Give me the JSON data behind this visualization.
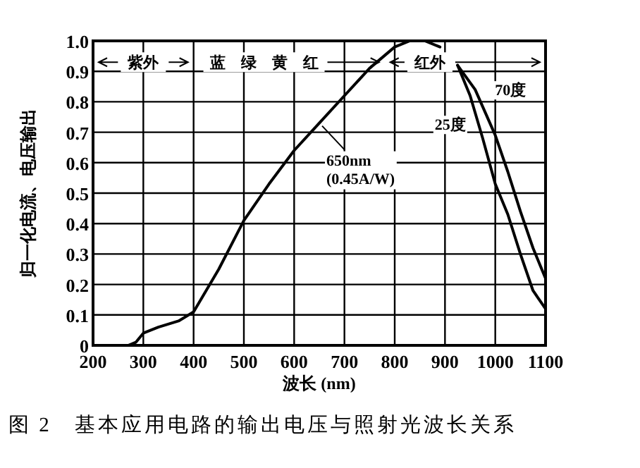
{
  "chart_data": {
    "type": "line",
    "title": "图 2　基本应用电路的输出电压与照射光波长关系",
    "xlabel": "波长 (nm)",
    "ylabel": "归一化电流、电压输出",
    "xlim": [
      200,
      1100
    ],
    "ylim": [
      0,
      1
    ],
    "xticks": [
      200,
      300,
      400,
      500,
      600,
      700,
      800,
      900,
      1000,
      1100
    ],
    "yticks": [
      {
        "value": 0,
        "label": "0"
      },
      0.1,
      0.2,
      0.3,
      0.4,
      0.5,
      0.6,
      0.7,
      0.8,
      0.9,
      {
        "value": 1,
        "label": "1.0"
      }
    ],
    "grid": true,
    "series": [
      {
        "color": "#000000",
        "x": [
          200,
          270,
          285,
          300,
          330,
          370,
          400,
          450,
          500,
          550,
          600,
          650,
          700,
          750,
          800,
          830,
          860,
          890
        ],
        "values": [
          0,
          0,
          0.01,
          0.04,
          0.06,
          0.08,
          0.11,
          0.25,
          0.41,
          0.53,
          0.64,
          0.73,
          0.82,
          0.91,
          0.98,
          1.0,
          1.0,
          0.98
        ]
      },
      {
        "name": "70度",
        "color": "#000000",
        "x": [
          925,
          960,
          1000,
          1025,
          1050,
          1075,
          1100
        ],
        "values": [
          0.92,
          0.84,
          0.69,
          0.57,
          0.44,
          0.32,
          0.22
        ]
      },
      {
        "name": "25度",
        "color": "#000000",
        "x": [
          925,
          950,
          975,
          1000,
          1025,
          1050,
          1075,
          1100
        ],
        "values": [
          0.92,
          0.82,
          0.68,
          0.53,
          0.43,
          0.3,
          0.18,
          0.12
        ]
      }
    ],
    "annotations": [
      {
        "text": "650nm\n(0.45A/W)",
        "x": 650,
        "y": 0.73
      },
      {
        "text": "紫外",
        "x": 300,
        "y": 0.93
      },
      "蓝　绿　黄　红",
      {
        "text": "红外",
        "x": 870,
        "y": 0.93
      }
    ]
  }
}
